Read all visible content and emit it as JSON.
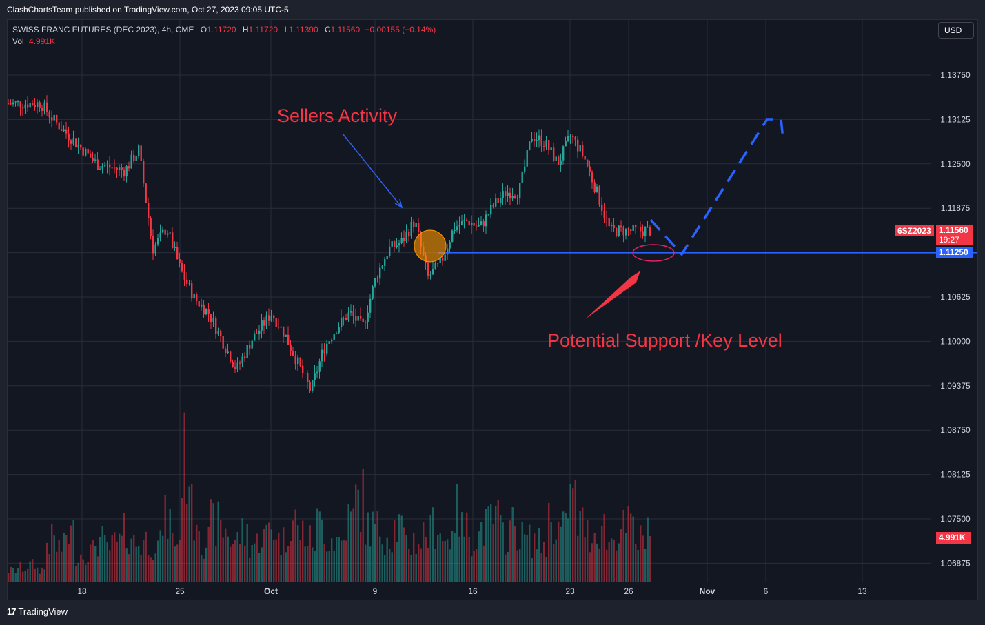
{
  "header": {
    "published": "ClashChartsTeam published on TradingView.com, Oct 27, 2023 09:05 UTC-5"
  },
  "legend": {
    "symbol": "SWISS FRANC FUTURES (DEC 2023), 4h, CME",
    "o_label": "O",
    "o": "1.11720",
    "h_label": "H",
    "h": "1.11720",
    "l_label": "L",
    "l": "1.11390",
    "c_label": "C",
    "c": "1.11560",
    "change": "−0.00155 (−0.14%)",
    "vol_label": "Vol",
    "vol": "4.991K"
  },
  "currency": "USD",
  "annotations": {
    "sellers": "Sellers Activity",
    "support": "Potential Support /Key Level"
  },
  "tags": {
    "symbol": "6SZ2023",
    "price": "1.11560",
    "countdown": "19:27",
    "line_price": "1.11250",
    "volume": "4.991K"
  },
  "footer": {
    "brand": "TradingView",
    "logo": "17"
  },
  "colors": {
    "up": "#26a69a",
    "down": "#f23645",
    "support_line": "#2962ff",
    "background": "#131722",
    "annotation": "#f23645"
  },
  "chart_data": {
    "type": "candlestick",
    "title": "SWISS FRANC FUTURES (DEC 2023), 4h, CME",
    "x_tick_labels": [
      "18",
      "25",
      "Oct",
      "9",
      "16",
      "23",
      "26",
      "Nov",
      "6",
      "13"
    ],
    "y_tick_labels": [
      "1.13750",
      "1.13125",
      "1.12500",
      "1.11875",
      "1.11250",
      "1.10625",
      "1.10000",
      "1.09375",
      "1.08750",
      "1.08125",
      "1.07500",
      "1.06875"
    ],
    "ylim": [
      1.066,
      1.142
    ],
    "support_level": 1.1125,
    "last_price": 1.1156,
    "last_volume": "4.991K",
    "grid": true,
    "price_path": [
      {
        "date": "Sep 15",
        "price": 1.1335
      },
      {
        "date": "Sep 16",
        "price": 1.131
      },
      {
        "date": "Sep 18",
        "price": 1.127
      },
      {
        "date": "Sep 19",
        "price": 1.125
      },
      {
        "date": "Sep 21",
        "price": 1.124
      },
      {
        "date": "Sep 22",
        "price": 1.127
      },
      {
        "date": "Sep 23",
        "price": 1.113
      },
      {
        "date": "Sep 24",
        "price": 1.116
      },
      {
        "date": "Sep 25",
        "price": 1.11
      },
      {
        "date": "Sep 26",
        "price": 1.106
      },
      {
        "date": "Sep 27",
        "price": 1.104
      },
      {
        "date": "Sep 28",
        "price": 1.1
      },
      {
        "date": "Sep 29",
        "price": 1.096
      },
      {
        "date": "Sep 30",
        "price": 1.1
      },
      {
        "date": "Oct 1",
        "price": 1.104
      },
      {
        "date": "Oct 2",
        "price": 1.101
      },
      {
        "date": "Oct 3",
        "price": 1.097
      },
      {
        "date": "Oct 4",
        "price": 1.093
      },
      {
        "date": "Oct 5",
        "price": 1.099
      },
      {
        "date": "Oct 6",
        "price": 1.102
      },
      {
        "date": "Oct 7",
        "price": 1.104
      },
      {
        "date": "Oct 8",
        "price": 1.102
      },
      {
        "date": "Oct 9",
        "price": 1.109
      },
      {
        "date": "Oct 10",
        "price": 1.113
      },
      {
        "date": "Oct 11",
        "price": 1.114
      },
      {
        "date": "Oct 12",
        "price": 1.117
      },
      {
        "date": "Oct 13",
        "price": 1.109
      },
      {
        "date": "Oct 14",
        "price": 1.111
      },
      {
        "date": "Oct 15",
        "price": 1.116
      },
      {
        "date": "Oct 16",
        "price": 1.117
      },
      {
        "date": "Oct 17",
        "price": 1.116
      },
      {
        "date": "Oct 18",
        "price": 1.119
      },
      {
        "date": "Oct 19",
        "price": 1.121
      },
      {
        "date": "Oct 20",
        "price": 1.121
      },
      {
        "date": "Oct 21",
        "price": 1.129
      },
      {
        "date": "Oct 22",
        "price": 1.128
      },
      {
        "date": "Oct 23",
        "price": 1.125
      },
      {
        "date": "Oct 24",
        "price": 1.129
      },
      {
        "date": "Oct 25",
        "price": 1.126
      },
      {
        "date": "Oct 26",
        "price": 1.121
      },
      {
        "date": "Oct 27",
        "price": 1.1156
      }
    ],
    "volume_profile": [
      0.08,
      0.1,
      0.12,
      0.09,
      0.3,
      0.25,
      0.35,
      0.2,
      0.22,
      0.3,
      0.25,
      0.28,
      0.35,
      0.28,
      0.3,
      0.27,
      0.45,
      0.3,
      0.9,
      0.5,
      0.3,
      0.42,
      0.38,
      0.3,
      0.35,
      0.28,
      0.33,
      0.4,
      0.3,
      0.45,
      0.36,
      0.3,
      0.42,
      0.32,
      0.3,
      0.45,
      0.6,
      0.4,
      0.38,
      0.35,
      0.4,
      0.28,
      0.3,
      0.35,
      0.42,
      0.3,
      0.5,
      0.38,
      0.33,
      0.4,
      0.45,
      0.35,
      0.4,
      0.32,
      0.3,
      0.28,
      0.45,
      0.38,
      0.6,
      0.42,
      0.35,
      0.4,
      0.3,
      0.38,
      0.4,
      0.3,
      0.42,
      0.32,
      0.35,
      0.45,
      0.3,
      0.32,
      0.28,
      0.35,
      0.3,
      0.28
    ]
  }
}
